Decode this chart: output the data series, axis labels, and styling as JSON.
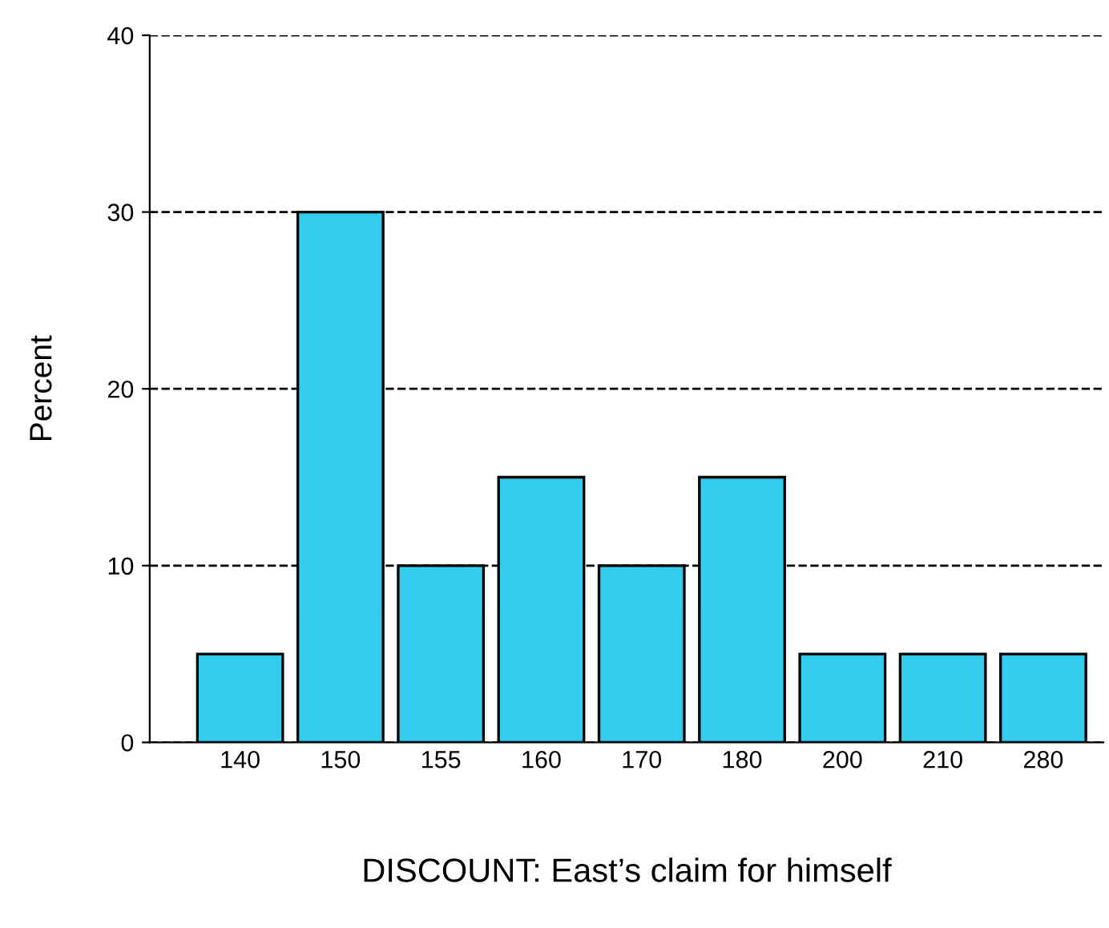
{
  "chart_data": {
    "type": "bar",
    "xlabel": "DISCOUNT: East’s claim for himself",
    "ylabel": "Percent",
    "categories": [
      "140",
      "150",
      "155",
      "160",
      "170",
      "180",
      "200",
      "210",
      "280"
    ],
    "values": [
      5,
      30,
      10,
      15,
      10,
      15,
      5,
      5,
      5
    ],
    "color": "#33ccee",
    "ylim": [
      0,
      40
    ],
    "yticks": [
      0,
      10,
      20,
      30,
      40
    ],
    "grid": "y",
    "line_style": "dashed"
  }
}
